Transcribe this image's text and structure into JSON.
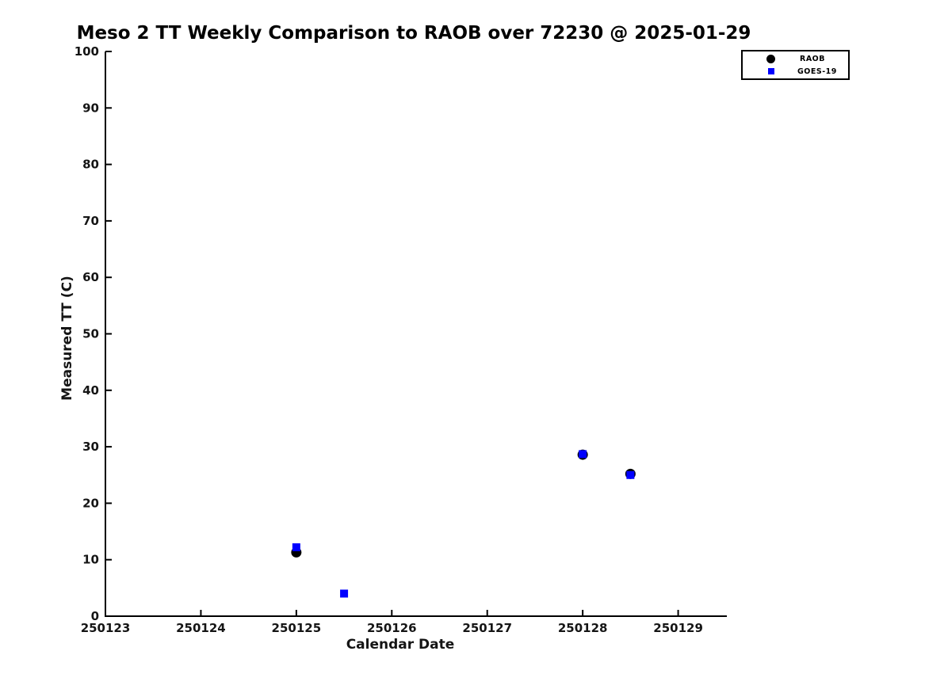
{
  "chart_data": {
    "type": "scatter",
    "title": "Meso 2 TT Weekly Comparison to RAOB over 72230 @ 2025-01-29",
    "xlabel": "Calendar Date",
    "ylabel": "Measured TT (C)",
    "xlim": [
      250123,
      250129.51
    ],
    "ylim": [
      0,
      100
    ],
    "xticks": [
      250123,
      250124,
      250125,
      250126,
      250127,
      250128,
      250129
    ],
    "yticks": [
      0,
      10,
      20,
      30,
      40,
      50,
      60,
      70,
      80,
      90,
      100
    ],
    "grid": false,
    "background_color": "#ffffff",
    "axis_color": "#000000",
    "tick_label_color": "#151515",
    "legend": {
      "position": "top-right-outside",
      "border_color": "#000000",
      "entries": [
        "RAOB",
        "GOES-19"
      ]
    },
    "series": [
      {
        "name": "RAOB",
        "marker": "circle",
        "color": "#000000",
        "points": [
          [
            250125.0,
            11.3
          ],
          [
            250128.0,
            28.6
          ],
          [
            250128.5,
            25.2
          ]
        ]
      },
      {
        "name": "GOES-19",
        "marker": "square",
        "color": "#0000ff",
        "points": [
          [
            250125.0,
            12.2
          ],
          [
            250125.5,
            4.0
          ],
          [
            250128.0,
            28.7
          ],
          [
            250128.5,
            25.0
          ]
        ]
      }
    ]
  }
}
